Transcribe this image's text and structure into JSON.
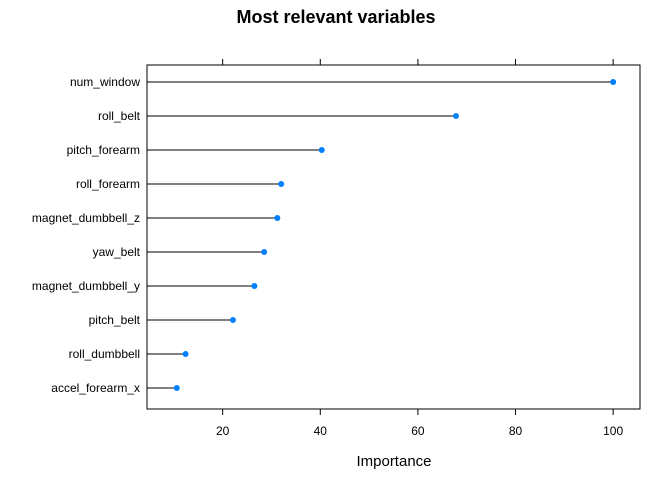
{
  "chart_data": {
    "type": "dot",
    "title": "Most relevant variables",
    "xlabel": "Importance",
    "ylabel": "",
    "xlim": [
      4.5,
      105.5
    ],
    "xticks": [
      20,
      40,
      60,
      80,
      100
    ],
    "tick_labels": [
      "20",
      "40",
      "60",
      "80",
      "100"
    ],
    "grid": false,
    "point_color": "#0080ff",
    "line_color": "#000000",
    "categories": [
      "num_window",
      "roll_belt",
      "pitch_forearm",
      "roll_forearm",
      "magnet_dumbbell_z",
      "yaw_belt",
      "magnet_dumbbell_y",
      "pitch_belt",
      "roll_dumbbell",
      "accel_forearm_x"
    ],
    "values": [
      100,
      67.8,
      40.3,
      32.0,
      31.2,
      28.5,
      26.5,
      22.1,
      12.4,
      10.6
    ]
  }
}
